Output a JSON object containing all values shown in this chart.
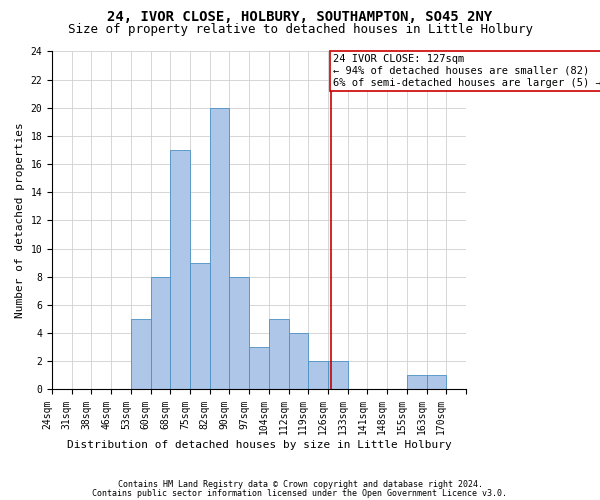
{
  "title1": "24, IVOR CLOSE, HOLBURY, SOUTHAMPTON, SO45 2NY",
  "title2": "Size of property relative to detached houses in Little Holbury",
  "xlabel": "Distribution of detached houses by size in Little Holbury",
  "ylabel": "Number of detached properties",
  "footnote1": "Contains HM Land Registry data © Crown copyright and database right 2024.",
  "footnote2": "Contains public sector information licensed under the Open Government Licence v3.0.",
  "bar_labels": [
    "24sqm",
    "31sqm",
    "38sqm",
    "46sqm",
    "53sqm",
    "60sqm",
    "68sqm",
    "75sqm",
    "82sqm",
    "90sqm",
    "97sqm",
    "104sqm",
    "112sqm",
    "119sqm",
    "126sqm",
    "133sqm",
    "141sqm",
    "148sqm",
    "155sqm",
    "163sqm",
    "170sqm"
  ],
  "bar_values": [
    0,
    0,
    0,
    0,
    5,
    8,
    17,
    9,
    20,
    8,
    3,
    5,
    4,
    2,
    2,
    0,
    0,
    0,
    1,
    1,
    0
  ],
  "bar_color": "#aec6e8",
  "bar_edge_color": "#4a90c4",
  "grid_color": "#d0d0d0",
  "vline_color": "#cc0000",
  "annotation_text": "24 IVOR CLOSE: 127sqm\n← 94% of detached houses are smaller (82)\n6% of semi-detached houses are larger (5) →",
  "annotation_box_color": "#ffffff",
  "annotation_box_edge_color": "#cc0000",
  "ylim": [
    0,
    24
  ],
  "yticks": [
    0,
    2,
    4,
    6,
    8,
    10,
    12,
    14,
    16,
    18,
    20,
    22,
    24
  ],
  "background_color": "#ffffff",
  "title1_fontsize": 10,
  "title2_fontsize": 9,
  "xlabel_fontsize": 8,
  "ylabel_fontsize": 8,
  "tick_fontsize": 7,
  "annotation_fontsize": 7.5,
  "footnote_fontsize": 6
}
